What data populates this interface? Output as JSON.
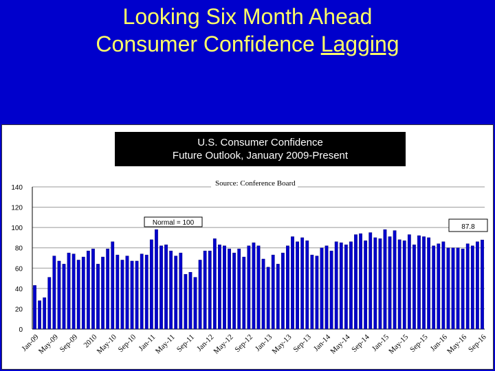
{
  "slide": {
    "title_line1": "Looking Six Month Ahead",
    "title_line2_prefix": "Consumer Confidence ",
    "title_line2_underlined": "Lagging"
  },
  "chart_data": {
    "type": "bar",
    "title_line1": "U.S. Consumer Confidence",
    "title_line2": "Future Outlook, January 2009-Present",
    "source": "Source:  Conference Board",
    "reference_label": "Normal = 100",
    "callout": "87.8",
    "ylim": [
      0,
      140
    ],
    "yticks": [
      0,
      20,
      40,
      60,
      80,
      100,
      120,
      140
    ],
    "grid": true,
    "bar_color": "#0000cc",
    "x_tick_labels": [
      "Jan-09",
      "May-09",
      "Sep-09",
      "2010",
      "May-10",
      "Sep-10",
      "Jan-11",
      "May-11",
      "Sep-11",
      "Jan-12",
      "May-12",
      "Sep-12",
      "Jan-13",
      "May-13",
      "Sep-13",
      "Jan-14",
      "May-14",
      "Sep-14",
      "Jan-15",
      "May-15",
      "Sep-15",
      "Jan-16",
      "May-16",
      "Sep-16"
    ],
    "values": [
      43,
      28,
      31,
      51,
      72,
      67,
      64,
      75,
      74,
      68,
      71,
      77,
      79,
      64,
      71,
      79,
      86,
      73,
      68,
      72,
      67,
      67,
      74,
      73,
      88,
      98,
      82,
      83,
      77,
      72,
      75,
      54,
      56,
      51,
      68,
      77,
      77,
      89,
      83,
      82,
      79,
      75,
      79,
      71,
      82,
      85,
      82,
      69,
      61,
      73,
      64,
      75,
      82,
      91,
      86,
      90,
      87,
      73,
      72,
      80,
      82,
      77,
      86,
      85,
      83,
      86,
      93,
      94,
      87,
      95,
      90,
      89,
      98,
      91,
      97,
      88,
      87,
      93,
      83,
      92,
      91,
      90,
      82,
      84,
      86,
      80,
      80,
      80,
      79,
      84,
      82,
      86,
      87.8
    ]
  }
}
